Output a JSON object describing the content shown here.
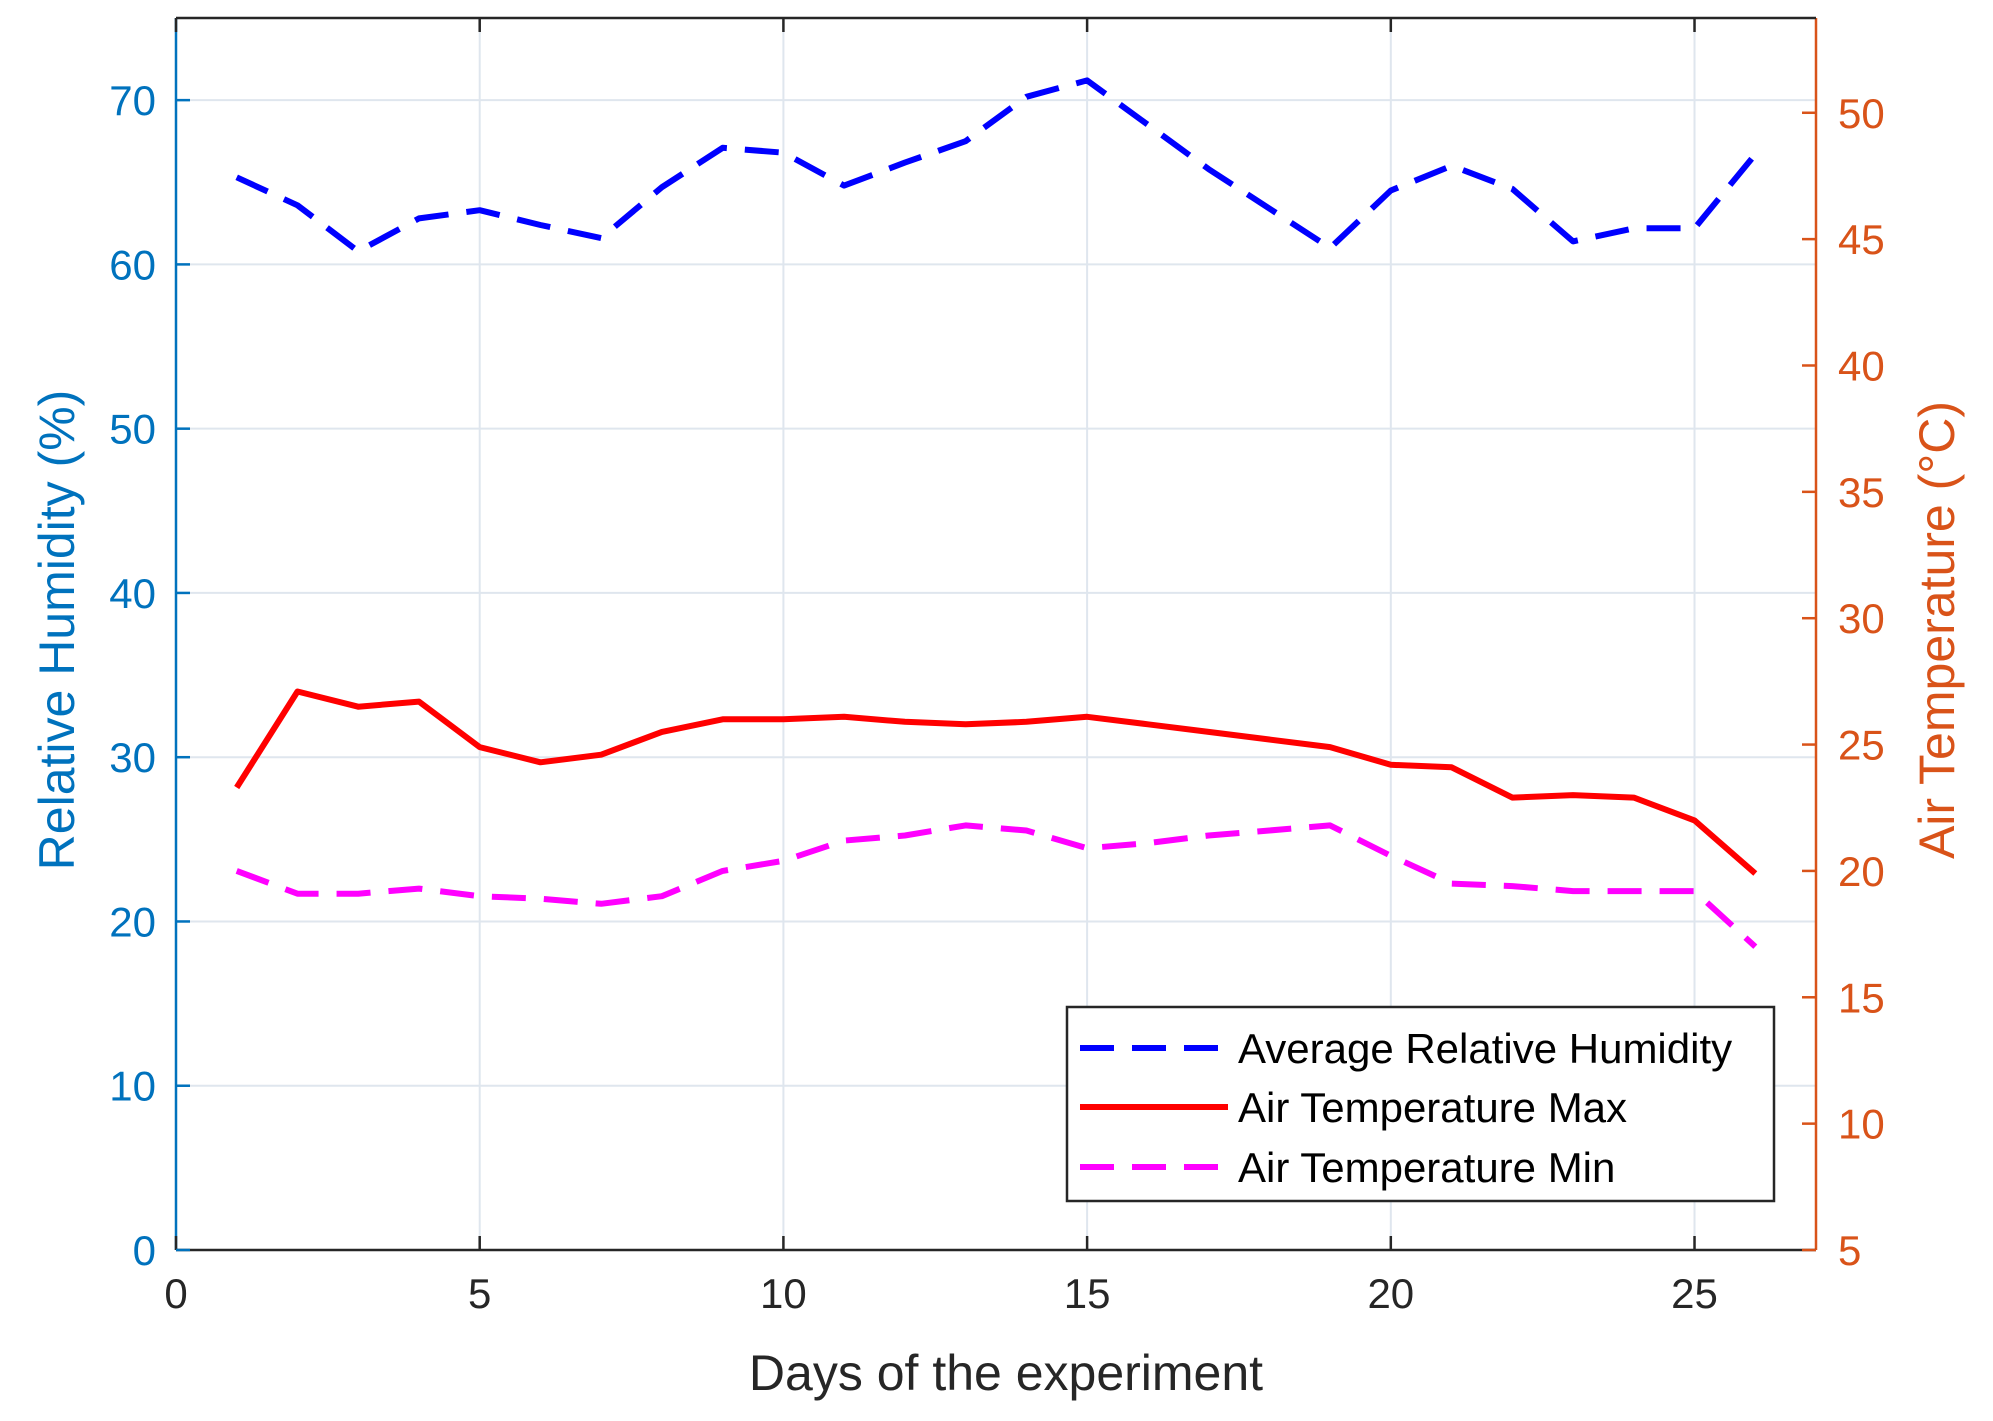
{
  "colors": {
    "left_axis": "#0072BD",
    "right_axis": "#D95319",
    "humidity": "#0000FF",
    "temp_max": "#FF0000",
    "temp_min": "#FF00FF",
    "grid": "#dfe6ee"
  },
  "chart_data": {
    "type": "line",
    "title": "",
    "xlabel": "Days of the experiment",
    "ylabel_left": "Relative Humidity (%)",
    "ylabel_right": "Air Temperature (°C)",
    "xlim": [
      0,
      27
    ],
    "ylim_left": [
      0,
      75
    ],
    "ylim_right": [
      5,
      53.75
    ],
    "x_ticks": [
      0,
      5,
      10,
      15,
      20,
      25
    ],
    "y_left_ticks": [
      0,
      10,
      20,
      30,
      40,
      50,
      60,
      70
    ],
    "y_right_ticks": [
      5,
      10,
      15,
      20,
      25,
      30,
      35,
      40,
      45,
      50
    ],
    "grid": true,
    "legend_position": "bottom-right",
    "x": [
      1,
      2,
      3,
      4,
      5,
      6,
      7,
      8,
      9,
      10,
      11,
      12,
      13,
      14,
      15,
      16,
      17,
      18,
      19,
      20,
      21,
      22,
      23,
      24,
      25,
      26
    ],
    "series": [
      {
        "name": "Average Relative Humidity",
        "axis": "left",
        "style": "dashed",
        "values": [
          65.3,
          63.6,
          60.8,
          62.8,
          63.3,
          62.4,
          61.6,
          64.7,
          67.1,
          66.8,
          64.8,
          66.2,
          67.5,
          70.2,
          71.2,
          68.5,
          65.8,
          63.4,
          61.0,
          64.5,
          66.0,
          64.6,
          61.4,
          62.2,
          62.2,
          66.7
        ]
      },
      {
        "name": "Air Temperature Max",
        "axis": "right",
        "style": "solid",
        "values": [
          23.3,
          27.1,
          26.5,
          26.7,
          24.9,
          24.3,
          24.6,
          25.5,
          26.0,
          26.0,
          26.1,
          25.9,
          25.8,
          25.9,
          26.1,
          25.8,
          25.5,
          25.2,
          24.9,
          24.2,
          24.1,
          22.9,
          23.0,
          22.9,
          22.0,
          19.9
        ]
      },
      {
        "name": "Air Temperature Min",
        "axis": "right",
        "style": "dashed",
        "values": [
          20.0,
          19.1,
          19.1,
          19.3,
          19.0,
          18.9,
          18.7,
          19.0,
          20.0,
          20.4,
          21.2,
          21.4,
          21.8,
          21.6,
          20.9,
          21.1,
          21.4,
          21.6,
          21.8,
          20.6,
          19.5,
          19.4,
          19.2,
          19.2,
          19.2,
          17.0
        ]
      }
    ]
  }
}
